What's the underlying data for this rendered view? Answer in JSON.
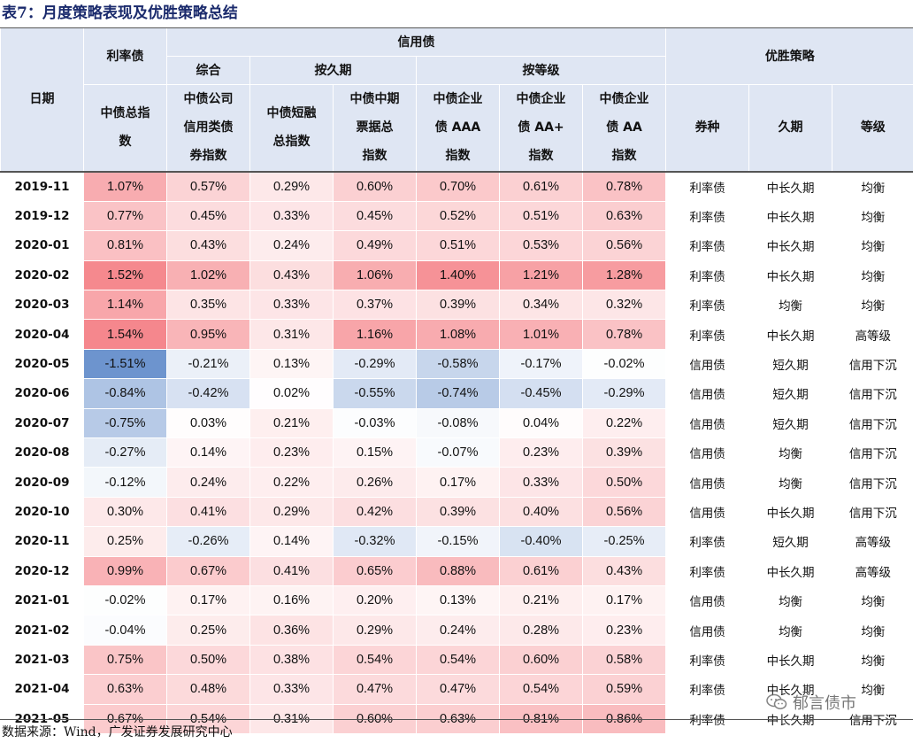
{
  "title": "表7：月度策略表现及优胜策略总结",
  "headers": {
    "date": "日期",
    "rate_bond": "利率债",
    "credit_bond": "信用债",
    "composite": "综合",
    "by_duration": "按久期",
    "by_rating": "按等级",
    "winning_strategy": "优胜策略",
    "col_total": [
      "中债总指",
      "数"
    ],
    "col_corp_credit": [
      "中债公司",
      "信用类债",
      "券指数"
    ],
    "col_short": [
      "中债短融",
      "总指数"
    ],
    "col_mtn": [
      "中债中期",
      "票据总",
      "指数"
    ],
    "col_aaa": [
      "中债企业",
      "债 AAA",
      "指数"
    ],
    "col_aaplus": [
      "中债企业",
      "债 AA+",
      "指数"
    ],
    "col_aa": [
      "中债企业",
      "债 AA",
      "指数"
    ],
    "col_type": "券种",
    "col_duration": "久期",
    "col_grade": "等级"
  },
  "rows": [
    {
      "date": "2019-11",
      "values": [
        "1.07%",
        "0.57%",
        "0.29%",
        "0.60%",
        "0.70%",
        "0.61%",
        "0.78%"
      ],
      "type": "利率债",
      "duration": "中长久期",
      "grade": "均衡"
    },
    {
      "date": "2019-12",
      "values": [
        "0.77%",
        "0.45%",
        "0.33%",
        "0.45%",
        "0.52%",
        "0.51%",
        "0.63%"
      ],
      "type": "利率债",
      "duration": "中长久期",
      "grade": "均衡"
    },
    {
      "date": "2020-01",
      "values": [
        "0.81%",
        "0.43%",
        "0.24%",
        "0.49%",
        "0.51%",
        "0.53%",
        "0.56%"
      ],
      "type": "利率债",
      "duration": "中长久期",
      "grade": "均衡"
    },
    {
      "date": "2020-02",
      "values": [
        "1.52%",
        "1.02%",
        "0.43%",
        "1.06%",
        "1.40%",
        "1.21%",
        "1.28%"
      ],
      "type": "利率债",
      "duration": "中长久期",
      "grade": "均衡"
    },
    {
      "date": "2020-03",
      "values": [
        "1.14%",
        "0.35%",
        "0.33%",
        "0.37%",
        "0.39%",
        "0.34%",
        "0.32%"
      ],
      "type": "利率债",
      "duration": "均衡",
      "grade": "均衡"
    },
    {
      "date": "2020-04",
      "values": [
        "1.54%",
        "0.95%",
        "0.31%",
        "1.16%",
        "1.08%",
        "1.01%",
        "0.78%"
      ],
      "type": "利率债",
      "duration": "中长久期",
      "grade": "高等级"
    },
    {
      "date": "2020-05",
      "values": [
        "-1.51%",
        "-0.21%",
        "0.13%",
        "-0.29%",
        "-0.58%",
        "-0.17%",
        "-0.02%"
      ],
      "type": "信用债",
      "duration": "短久期",
      "grade": "信用下沉"
    },
    {
      "date": "2020-06",
      "values": [
        "-0.84%",
        "-0.42%",
        "0.02%",
        "-0.55%",
        "-0.74%",
        "-0.45%",
        "-0.29%"
      ],
      "type": "信用债",
      "duration": "短久期",
      "grade": "信用下沉"
    },
    {
      "date": "2020-07",
      "values": [
        "-0.75%",
        "0.03%",
        "0.21%",
        "-0.03%",
        "-0.08%",
        "0.04%",
        "0.22%"
      ],
      "type": "信用债",
      "duration": "短久期",
      "grade": "信用下沉"
    },
    {
      "date": "2020-08",
      "values": [
        "-0.27%",
        "0.14%",
        "0.23%",
        "0.15%",
        "-0.07%",
        "0.23%",
        "0.39%"
      ],
      "type": "信用债",
      "duration": "均衡",
      "grade": "信用下沉"
    },
    {
      "date": "2020-09",
      "values": [
        "-0.12%",
        "0.24%",
        "0.22%",
        "0.26%",
        "0.17%",
        "0.33%",
        "0.50%"
      ],
      "type": "信用债",
      "duration": "均衡",
      "grade": "信用下沉"
    },
    {
      "date": "2020-10",
      "values": [
        "0.30%",
        "0.41%",
        "0.29%",
        "0.42%",
        "0.39%",
        "0.40%",
        "0.56%"
      ],
      "type": "信用债",
      "duration": "中长久期",
      "grade": "信用下沉"
    },
    {
      "date": "2020-11",
      "values": [
        "0.25%",
        "-0.26%",
        "0.14%",
        "-0.32%",
        "-0.15%",
        "-0.40%",
        "-0.25%"
      ],
      "type": "利率债",
      "duration": "短久期",
      "grade": "高等级"
    },
    {
      "date": "2020-12",
      "values": [
        "0.99%",
        "0.67%",
        "0.41%",
        "0.65%",
        "0.88%",
        "0.61%",
        "0.43%"
      ],
      "type": "利率债",
      "duration": "中长久期",
      "grade": "高等级"
    },
    {
      "date": "2021-01",
      "values": [
        "-0.02%",
        "0.17%",
        "0.16%",
        "0.20%",
        "0.13%",
        "0.21%",
        "0.17%"
      ],
      "type": "信用债",
      "duration": "均衡",
      "grade": "均衡"
    },
    {
      "date": "2021-02",
      "values": [
        "-0.04%",
        "0.25%",
        "0.36%",
        "0.29%",
        "0.24%",
        "0.28%",
        "0.23%"
      ],
      "type": "信用债",
      "duration": "均衡",
      "grade": "均衡"
    },
    {
      "date": "2021-03",
      "values": [
        "0.75%",
        "0.50%",
        "0.38%",
        "0.54%",
        "0.54%",
        "0.60%",
        "0.58%"
      ],
      "type": "利率债",
      "duration": "中长久期",
      "grade": "均衡"
    },
    {
      "date": "2021-04",
      "values": [
        "0.63%",
        "0.48%",
        "0.33%",
        "0.47%",
        "0.47%",
        "0.54%",
        "0.59%"
      ],
      "type": "利率债",
      "duration": "中长久期",
      "grade": "均衡"
    },
    {
      "date": "2021-05",
      "values": [
        "0.67%",
        "0.54%",
        "0.31%",
        "0.60%",
        "0.63%",
        "0.81%",
        "0.86%"
      ],
      "type": "利率债",
      "duration": "中长久期",
      "grade": "信用下沉"
    }
  ],
  "heat_colors": {
    "positive": "#f47a80",
    "negative": "#5a86c8",
    "neutral": "#ffffff"
  },
  "source": "数据来源：Wind，广发证券发展研究中心",
  "watermark": "郁言债市"
}
